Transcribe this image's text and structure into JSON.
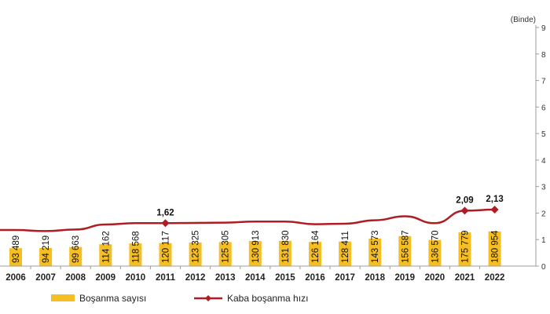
{
  "chart_data": {
    "type": "bar",
    "categories": [
      "2006",
      "2007",
      "2008",
      "2009",
      "2010",
      "2011",
      "2012",
      "2013",
      "2014",
      "2015",
      "2016",
      "2017",
      "2018",
      "2019",
      "2020",
      "2021",
      "2022"
    ],
    "series": [
      {
        "name": "Boşanma sayısı",
        "type": "bar",
        "values": [
          93489,
          94219,
          99663,
          114162,
          118568,
          120117,
          123325,
          125305,
          130913,
          131830,
          126164,
          128411,
          143573,
          156587,
          136570,
          175779,
          180954
        ],
        "labels": [
          "93 489",
          "94 219",
          "99 663",
          "114 162",
          "118 568",
          "120 117",
          "123 325",
          "125 305",
          "130 913",
          "131 830",
          "126 164",
          "128 411",
          "143 573",
          "156 587",
          "136 570",
          "175 779",
          "180 954"
        ],
        "color": "#F5BE22"
      },
      {
        "name": "Kaba boşanma hızı",
        "type": "line",
        "axis": "right",
        "values": [
          1.36,
          1.32,
          1.38,
          1.57,
          1.62,
          1.62,
          1.63,
          1.64,
          1.68,
          1.68,
          1.58,
          1.6,
          1.73,
          1.88,
          1.62,
          2.09,
          2.13
        ],
        "color": "#B01C23"
      }
    ],
    "annotations": [
      {
        "category": "2011",
        "text": "1,62"
      },
      {
        "category": "2021",
        "text": "2,09"
      },
      {
        "category": "2022",
        "text": "2,13"
      }
    ],
    "right_axis": {
      "unit_label": "(Binde)",
      "ylim": [
        0,
        9
      ],
      "ticks": [
        "0",
        "1",
        "2",
        "3",
        "4",
        "5",
        "6",
        "7",
        "8",
        "9"
      ]
    },
    "bar_ylim": [
      0,
      1245000
    ],
    "legend": {
      "placement": "bottom",
      "bar_label": "Boşanma sayısı",
      "line_label": "Kaba boşanma hızı"
    },
    "grid": false
  }
}
